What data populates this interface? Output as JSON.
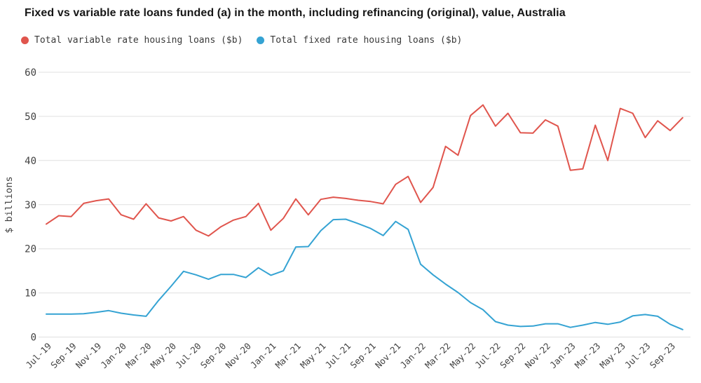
{
  "title": "Fixed vs variable rate loans funded (a) in the month, including refinancing (original), value, Australia",
  "chart_data": {
    "type": "line",
    "title": "Fixed vs variable rate loans funded (a) in the month, including refinancing (original), value, Australia",
    "xlabel": "",
    "ylabel": "$ billions",
    "ylim": [
      0,
      60
    ],
    "y_ticks": [
      0,
      10,
      20,
      30,
      40,
      50,
      60
    ],
    "grid": true,
    "legend_position": "top-left",
    "x_tick_step": 2,
    "categories": [
      "Jul-19",
      "Aug-19",
      "Sep-19",
      "Oct-19",
      "Nov-19",
      "Dec-19",
      "Jan-20",
      "Feb-20",
      "Mar-20",
      "Apr-20",
      "May-20",
      "Jun-20",
      "Jul-20",
      "Aug-20",
      "Sep-20",
      "Oct-20",
      "Nov-20",
      "Dec-20",
      "Jan-21",
      "Feb-21",
      "Mar-21",
      "Apr-21",
      "May-21",
      "Jun-21",
      "Jul-21",
      "Aug-21",
      "Sep-21",
      "Oct-21",
      "Nov-21",
      "Dec-21",
      "Jan-22",
      "Feb-22",
      "Mar-22",
      "Apr-22",
      "May-22",
      "Jun-22",
      "Jul-22",
      "Aug-22",
      "Sep-22",
      "Oct-22",
      "Nov-22",
      "Dec-22",
      "Jan-23",
      "Feb-23",
      "Mar-23",
      "Apr-23",
      "May-23",
      "Jun-23",
      "Jul-23",
      "Aug-23",
      "Sep-23",
      "Oct-23"
    ],
    "visible_x_tick_labels": [
      "Jul-19",
      "Sep-19",
      "Nov-19",
      "Jan-20",
      "Mar-20",
      "May-20",
      "Jul-20",
      "Sep-20",
      "Nov-20",
      "Jan-21",
      "Mar-21",
      "May-21",
      "Jul-21",
      "Sep-21",
      "Nov-21",
      "Jan-22",
      "Mar-22",
      "May-22",
      "Jul-22",
      "Sep-22",
      "Nov-22",
      "Jan-23",
      "Mar-23",
      "May-23",
      "Jul-23",
      "Sep-23"
    ],
    "series": [
      {
        "id": "variable",
        "name": "Total variable rate housing loans ($b)",
        "color": "#e0554d",
        "values": [
          25.6,
          27.5,
          27.3,
          30.3,
          30.9,
          31.3,
          27.7,
          26.7,
          30.2,
          27.0,
          26.3,
          27.3,
          24.2,
          22.9,
          25.0,
          26.5,
          27.3,
          30.3,
          24.2,
          26.9,
          31.3,
          27.7,
          31.2,
          31.7,
          31.4,
          31.0,
          30.7,
          30.2,
          34.6,
          36.4,
          30.5,
          33.9,
          43.2,
          41.2,
          50.2,
          52.6,
          47.8,
          50.7,
          46.3,
          46.2,
          49.2,
          47.8,
          37.8,
          38.1,
          48.0,
          40.0,
          51.8,
          50.7,
          45.2,
          49.0,
          46.8,
          49.7
        ]
      },
      {
        "id": "fixed",
        "name": "Total fixed rate housing loans ($b)",
        "color": "#35a3d3",
        "values": [
          5.2,
          5.2,
          5.2,
          5.3,
          5.6,
          6.0,
          5.4,
          5.0,
          4.7,
          8.3,
          11.5,
          14.9,
          14.1,
          13.1,
          14.2,
          14.2,
          13.5,
          15.7,
          14.0,
          15.0,
          20.4,
          20.5,
          24.1,
          26.6,
          26.7,
          25.7,
          24.6,
          23.0,
          26.2,
          24.4,
          16.5,
          14.1,
          12.0,
          10.1,
          7.8,
          6.2,
          3.5,
          2.7,
          2.4,
          2.5,
          3.0,
          3.0,
          2.2,
          2.7,
          3.3,
          2.9,
          3.4,
          4.8,
          5.1,
          4.7,
          2.9,
          1.7
        ]
      }
    ],
    "style": {
      "grid_color": "#e0e0e0",
      "tick_label_color": "#424242",
      "title_color": "#161616",
      "background": "#ffffff"
    }
  }
}
